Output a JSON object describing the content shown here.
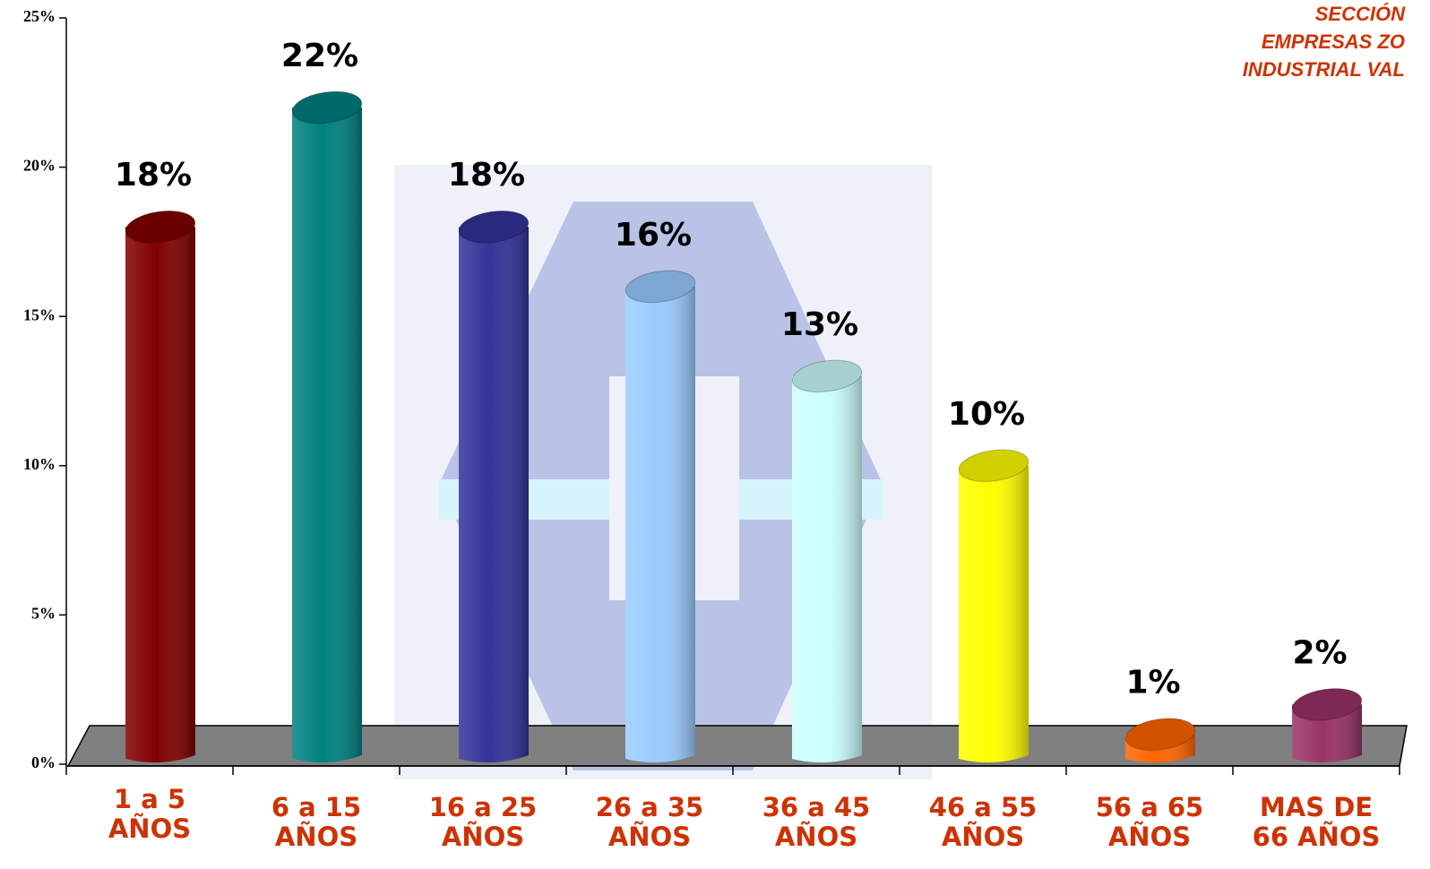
{
  "chart_data": {
    "type": "bar",
    "title_lines": [
      "SECCIÓN",
      "EMPRESAS ZO",
      "INDUSTRIAL VAL"
    ],
    "categories": [
      "1 a 5 AÑOS",
      "6 a 15 AÑOS",
      "16 a 25 AÑOS",
      "26 a 35 AÑOS",
      "36 a 45 AÑOS",
      "46 a 55 AÑOS",
      "56 a 65 AÑOS",
      "MAS DE 66 AÑOS"
    ],
    "values": [
      18,
      22,
      18,
      16,
      13,
      10,
      1,
      2
    ],
    "value_labels": [
      "18%",
      "22%",
      "18%",
      "16%",
      "13%",
      "10%",
      "1%",
      "2%"
    ],
    "colors": [
      "#800000",
      "#008080",
      "#333399",
      "#99ccff",
      "#ccffff",
      "#ffff00",
      "#ff6600",
      "#993366"
    ],
    "ylim": [
      0,
      25
    ],
    "yticks": [
      {
        "value": 0,
        "label": "0%"
      },
      {
        "value": 5,
        "label": "5%"
      },
      {
        "value": 10,
        "label": "10%"
      },
      {
        "value": 15,
        "label": "15%"
      },
      {
        "value": 20,
        "label": "20%"
      },
      {
        "value": 25,
        "label": "25%"
      }
    ]
  }
}
